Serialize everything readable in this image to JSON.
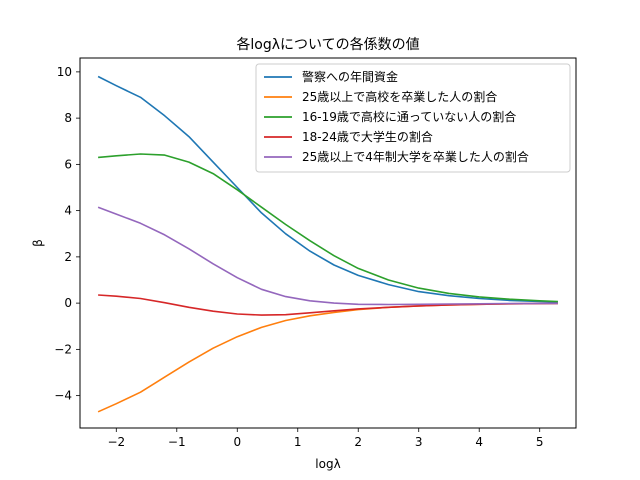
{
  "chart_data": {
    "type": "line",
    "title": "各logλについての各係数の値",
    "xlabel": "logλ",
    "ylabel": "β",
    "xlim": [
      -2.6,
      5.6
    ],
    "ylim": [
      -5.4,
      10.6
    ],
    "xticks": [
      -2,
      -1,
      0,
      1,
      2,
      3,
      4,
      5
    ],
    "xtick_labels": [
      "−2",
      "−1",
      "0",
      "1",
      "2",
      "3",
      "4",
      "5"
    ],
    "yticks": [
      -4,
      -2,
      0,
      2,
      4,
      6,
      8,
      10
    ],
    "ytick_labels": [
      "−4",
      "−2",
      "0",
      "2",
      "4",
      "6",
      "8",
      "10"
    ],
    "grid": false,
    "legend_position": "top-right",
    "x": [
      -2.3,
      -2.0,
      -1.6,
      -1.2,
      -0.8,
      -0.4,
      0.0,
      0.4,
      0.8,
      1.2,
      1.6,
      2.0,
      2.5,
      3.0,
      3.5,
      4.0,
      4.5,
      5.0,
      5.3
    ],
    "series": [
      {
        "name": "警察への年間資金",
        "color": "#1f77b4",
        "values": [
          9.8,
          9.4,
          8.9,
          8.1,
          7.2,
          6.1,
          5.0,
          3.9,
          3.0,
          2.25,
          1.65,
          1.2,
          0.8,
          0.5,
          0.32,
          0.2,
          0.12,
          0.07,
          0.05
        ]
      },
      {
        "name": "25歳以上で高校を卒業した人の割合",
        "color": "#ff7f0e",
        "values": [
          -4.7,
          -4.35,
          -3.85,
          -3.2,
          -2.55,
          -1.95,
          -1.45,
          -1.05,
          -0.75,
          -0.55,
          -0.4,
          -0.28,
          -0.18,
          -0.12,
          -0.08,
          -0.05,
          -0.03,
          -0.02,
          -0.01
        ]
      },
      {
        "name": "16-19歳で高校に通っていない人の割合",
        "color": "#2ca02c",
        "values": [
          6.3,
          6.37,
          6.45,
          6.4,
          6.1,
          5.6,
          4.9,
          4.15,
          3.4,
          2.7,
          2.05,
          1.5,
          1.0,
          0.65,
          0.42,
          0.27,
          0.17,
          0.1,
          0.07
        ]
      },
      {
        "name": "18-24歳で大学生の割合",
        "color": "#d62728",
        "values": [
          0.35,
          0.3,
          0.2,
          0.02,
          -0.18,
          -0.35,
          -0.47,
          -0.52,
          -0.5,
          -0.42,
          -0.33,
          -0.25,
          -0.18,
          -0.12,
          -0.08,
          -0.05,
          -0.03,
          -0.02,
          -0.01
        ]
      },
      {
        "name": "25歳以上で4年制大学を卒業した人の割合",
        "color": "#9467bd",
        "values": [
          4.15,
          3.85,
          3.45,
          2.95,
          2.35,
          1.7,
          1.1,
          0.6,
          0.28,
          0.1,
          0.0,
          -0.05,
          -0.06,
          -0.05,
          -0.04,
          -0.03,
          -0.02,
          -0.01,
          -0.01
        ]
      }
    ]
  }
}
